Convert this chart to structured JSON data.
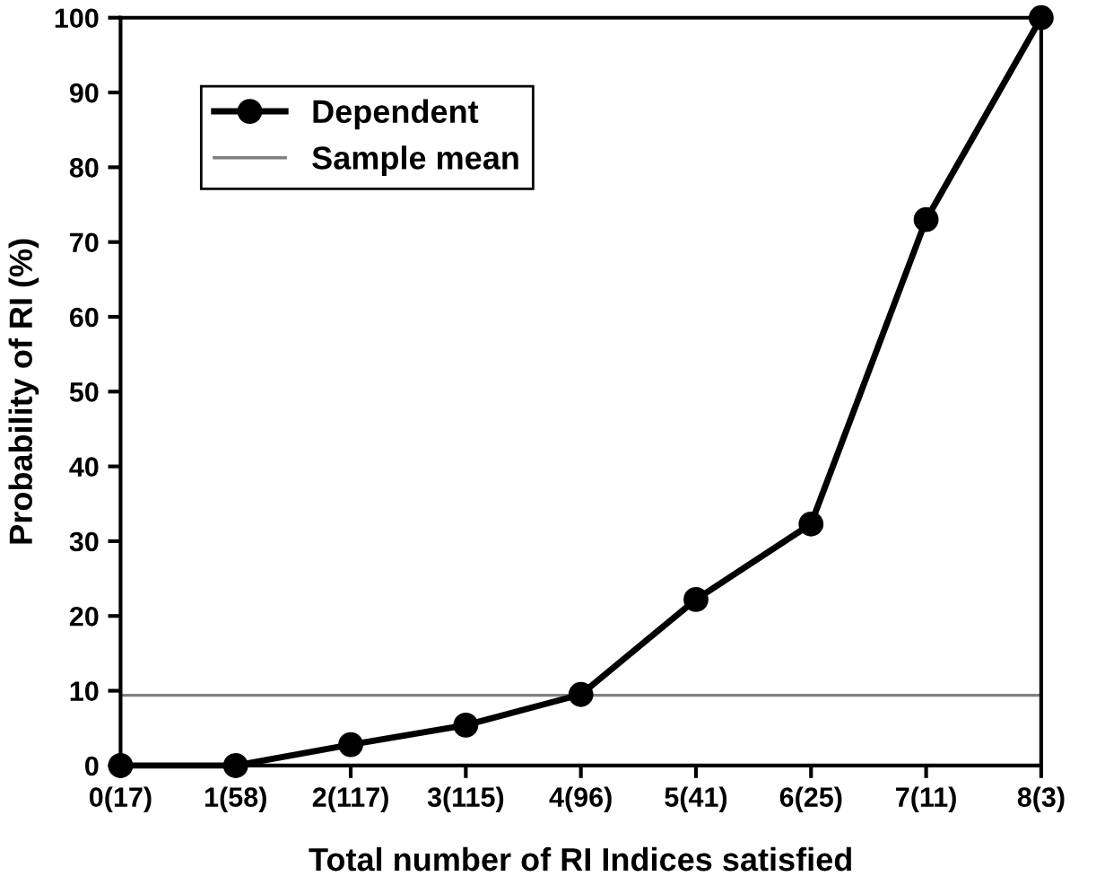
{
  "chart_data": {
    "type": "line",
    "xlabel": "Total number of RI Indices satisfied",
    "ylabel": "Probability of RI (%)",
    "categories": [
      "0(17)",
      "1(58)",
      "2(117)",
      "3(115)",
      "4(96)",
      "5(41)",
      "6(25)",
      "7(11)",
      "8(3)"
    ],
    "series": [
      {
        "name": "Dependent",
        "color": "#000000",
        "values": [
          0,
          0,
          2.8,
          5.4,
          9.5,
          22.2,
          32.3,
          73,
          100
        ]
      }
    ],
    "ref_lines": [
      {
        "axis": "y",
        "value": 9.4,
        "label": "Sample mean",
        "color": "#808080"
      }
    ],
    "ylim": [
      0,
      100
    ],
    "yticks": [
      0,
      10,
      20,
      30,
      40,
      50,
      60,
      70,
      80,
      90,
      100
    ],
    "marker": "circle",
    "line_style": "solid",
    "grid": false,
    "legend": "top left"
  }
}
